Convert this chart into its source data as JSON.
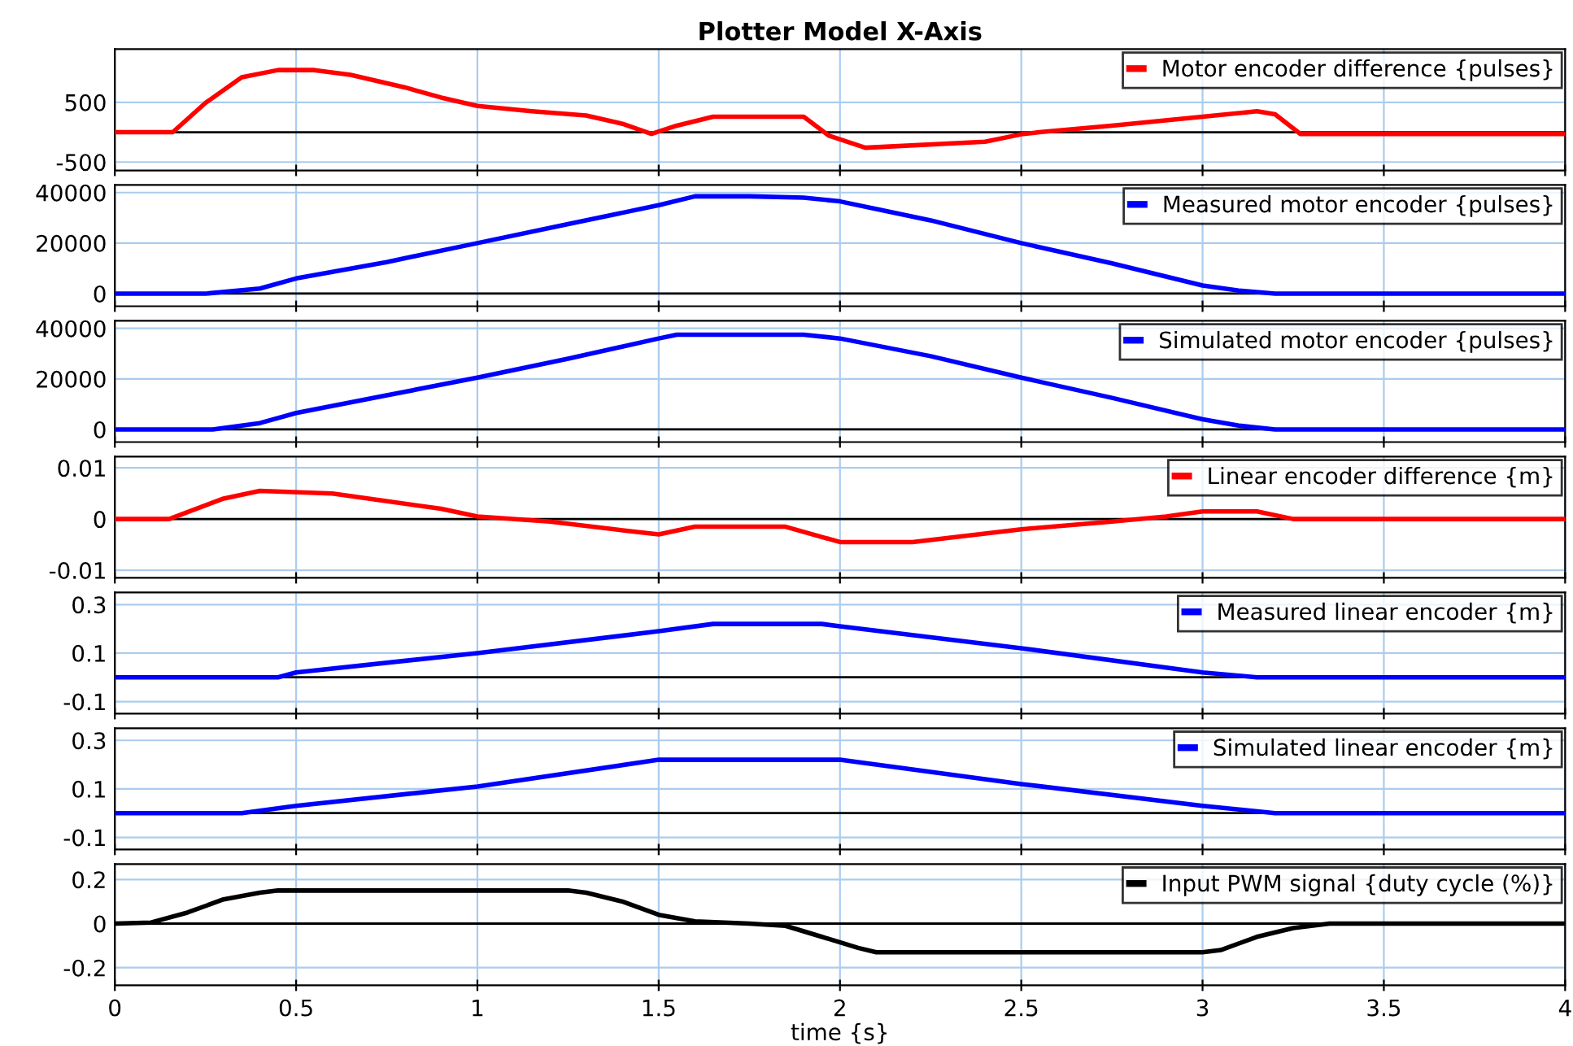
{
  "chart_data": [
    {
      "type": "line",
      "title": "Plotter Model X-Axis",
      "x": [
        0,
        0.16,
        0.25,
        0.35,
        0.45,
        0.55,
        0.65,
        0.8,
        0.9,
        1.0,
        1.15,
        1.3,
        1.4,
        1.48,
        1.55,
        1.65,
        1.9,
        1.97,
        2.07,
        2.4,
        2.5,
        2.55,
        2.75,
        3.0,
        3.15,
        3.2,
        3.27,
        4
      ],
      "series": [
        {
          "name": "Motor encoder difference {pulses}",
          "color": "#ff0000",
          "values": [
            0,
            0,
            490,
            920,
            1040,
            1040,
            960,
            750,
            580,
            440,
            350,
            280,
            140,
            -30,
            110,
            260,
            260,
            -60,
            -260,
            -160,
            -35,
            0,
            110,
            260,
            350,
            300,
            -30,
            -30
          ]
        }
      ],
      "xlim": [
        0,
        4
      ],
      "xticks": [
        0,
        0.5,
        1,
        1.5,
        2,
        2.5,
        3,
        3.5,
        4
      ],
      "ylim": [
        -640,
        1390
      ],
      "yticks": [
        -500,
        500
      ],
      "tick_labels": "y",
      "grid": true,
      "legend": "top right",
      "ref_lines": [
        {
          "axis": "y",
          "value": 0,
          "color": "#000000"
        }
      ]
    },
    {
      "type": "line",
      "x": [
        0,
        0.25,
        0.4,
        0.5,
        0.75,
        1.0,
        1.25,
        1.5,
        1.6,
        1.75,
        1.9,
        2.0,
        2.25,
        2.5,
        2.75,
        3.0,
        3.1,
        3.2,
        4
      ],
      "series": [
        {
          "name": "Measured motor encoder {pulses}",
          "color": "#0000ff",
          "values": [
            0,
            0,
            2000,
            6000,
            12500,
            20000,
            27500,
            35000,
            38500,
            38500,
            38000,
            36500,
            29000,
            20000,
            12000,
            3200,
            1200,
            0,
            0
          ]
        }
      ],
      "xlim": [
        0,
        4
      ],
      "xticks": [
        0,
        0.5,
        1,
        1.5,
        2,
        2.5,
        3,
        3.5,
        4
      ],
      "ylim": [
        -5000,
        43000
      ],
      "yticks": [
        0,
        20000,
        40000
      ],
      "tick_labels": "y",
      "grid": true,
      "legend": "top right",
      "ref_lines": [
        {
          "axis": "y",
          "value": 0,
          "color": "#000000"
        }
      ]
    },
    {
      "type": "line",
      "x": [
        0,
        0.27,
        0.4,
        0.5,
        0.75,
        1.0,
        1.25,
        1.5,
        1.55,
        1.9,
        2.0,
        2.25,
        2.5,
        2.75,
        3.0,
        3.1,
        3.2,
        4
      ],
      "series": [
        {
          "name": "Simulated motor encoder {pulses}",
          "color": "#0000ff",
          "values": [
            0,
            0,
            2500,
            6500,
            13500,
            20500,
            28000,
            36000,
            37500,
            37500,
            36000,
            29000,
            20500,
            12500,
            4000,
            1500,
            0,
            0
          ]
        }
      ],
      "xlim": [
        0,
        4
      ],
      "xticks": [
        0,
        0.5,
        1,
        1.5,
        2,
        2.5,
        3,
        3.5,
        4
      ],
      "ylim": [
        -5000,
        43000
      ],
      "yticks": [
        0,
        20000,
        40000
      ],
      "tick_labels": "y",
      "grid": true,
      "legend": "top right",
      "ref_lines": [
        {
          "axis": "y",
          "value": 0,
          "color": "#000000"
        }
      ]
    },
    {
      "type": "line",
      "x": [
        0,
        0.15,
        0.3,
        0.4,
        0.6,
        0.7,
        0.9,
        1.0,
        1.2,
        1.4,
        1.5,
        1.6,
        1.85,
        2.0,
        2.2,
        2.5,
        2.75,
        2.9,
        3.0,
        3.15,
        3.25,
        4
      ],
      "series": [
        {
          "name": "Linear encoder difference {m}",
          "color": "#ff0000",
          "values": [
            0,
            0,
            0.004,
            0.0055,
            0.005,
            0.004,
            0.002,
            0.0005,
            -0.0005,
            -0.0022,
            -0.003,
            -0.0015,
            -0.0015,
            -0.0045,
            -0.0045,
            -0.002,
            -0.0005,
            0.0005,
            0.0015,
            0.0015,
            0,
            0
          ]
        }
      ],
      "xlim": [
        0,
        4
      ],
      "xticks": [
        0,
        0.5,
        1,
        1.5,
        2,
        2.5,
        3,
        3.5,
        4
      ],
      "ylim": [
        -0.0115,
        0.0122
      ],
      "yticks": [
        -0.01,
        0,
        0.01
      ],
      "tick_labels": "y",
      "grid": true,
      "legend": "top right",
      "ref_lines": [
        {
          "axis": "y",
          "value": 0,
          "color": "#000000"
        }
      ]
    },
    {
      "type": "line",
      "x": [
        0,
        0.45,
        0.5,
        1.0,
        1.5,
        1.65,
        1.95,
        2.0,
        2.5,
        3.0,
        3.15,
        4
      ],
      "series": [
        {
          "name": "Measured linear encoder {m}",
          "color": "#0000ff",
          "values": [
            0,
            0,
            0.02,
            0.1,
            0.19,
            0.22,
            0.22,
            0.21,
            0.12,
            0.02,
            0,
            0
          ]
        }
      ],
      "xlim": [
        0,
        4
      ],
      "xticks": [
        0,
        0.5,
        1,
        1.5,
        2,
        2.5,
        3,
        3.5,
        4
      ],
      "ylim": [
        -0.15,
        0.35
      ],
      "yticks": [
        -0.1,
        0.1,
        0.3
      ],
      "tick_labels": "y",
      "grid": true,
      "legend": "top right",
      "ref_lines": [
        {
          "axis": "y",
          "value": 0,
          "color": "#000000"
        }
      ]
    },
    {
      "type": "line",
      "x": [
        0,
        0.35,
        0.5,
        1.0,
        1.5,
        2.0,
        2.5,
        3.0,
        3.2,
        4
      ],
      "series": [
        {
          "name": "Simulated linear encoder {m}",
          "color": "#0000ff",
          "values": [
            0,
            0,
            0.03,
            0.11,
            0.22,
            0.22,
            0.12,
            0.03,
            0,
            0
          ]
        }
      ],
      "xlim": [
        0,
        4
      ],
      "xticks": [
        0,
        0.5,
        1,
        1.5,
        2,
        2.5,
        3,
        3.5,
        4
      ],
      "ylim": [
        -0.15,
        0.35
      ],
      "yticks": [
        -0.1,
        0.1,
        0.3
      ],
      "tick_labels": "y",
      "grid": true,
      "legend": "top right",
      "ref_lines": [
        {
          "axis": "y",
          "value": 0,
          "color": "#000000"
        }
      ]
    },
    {
      "type": "line",
      "xlabel": "time {s}",
      "x": [
        0,
        0.1,
        0.2,
        0.3,
        0.4,
        0.45,
        1.25,
        1.3,
        1.4,
        1.5,
        1.6,
        1.75,
        1.85,
        1.95,
        2.05,
        2.1,
        3.0,
        3.05,
        3.15,
        3.25,
        3.35,
        4
      ],
      "series": [
        {
          "name": "Input PWM signal {duty cycle (%)}",
          "color": "#000000",
          "values": [
            0,
            0.005,
            0.05,
            0.11,
            0.14,
            0.15,
            0.15,
            0.14,
            0.1,
            0.04,
            0.01,
            0,
            -0.01,
            -0.06,
            -0.11,
            -0.13,
            -0.13,
            -0.12,
            -0.06,
            -0.02,
            0,
            0
          ]
        }
      ],
      "xlim": [
        0,
        4
      ],
      "xticks": [
        0,
        0.5,
        1,
        1.5,
        2,
        2.5,
        3,
        3.5,
        4
      ],
      "ylim": [
        -0.28,
        0.27
      ],
      "yticks": [
        -0.2,
        0,
        0.2
      ],
      "grid": true,
      "legend": "top right",
      "ref_lines": [
        {
          "axis": "y",
          "value": 0,
          "color": "#000000"
        }
      ]
    }
  ]
}
